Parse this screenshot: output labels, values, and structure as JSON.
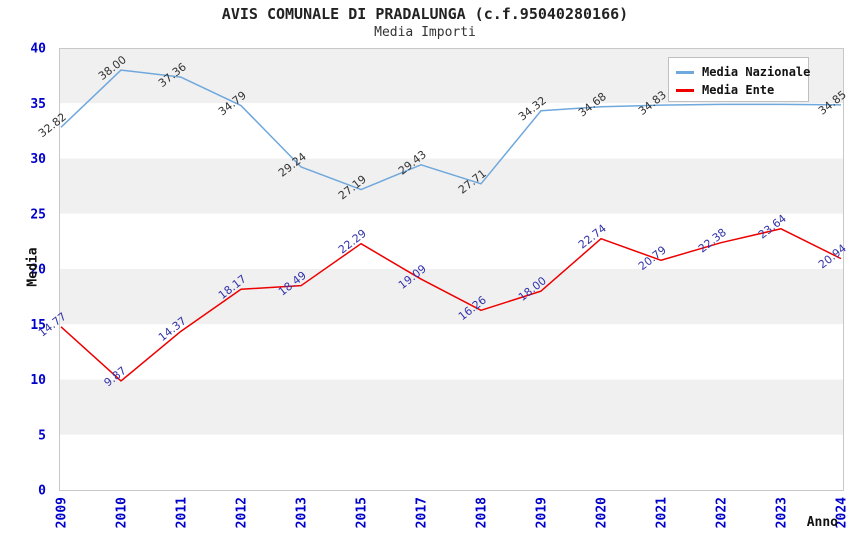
{
  "page": {
    "title": "AVIS COMUNALE DI PRADALUNGA (c.f.95040280166)",
    "subtitle": "Media Importi"
  },
  "axes": {
    "y_title": "Media",
    "x_title": "Anno"
  },
  "legend": {
    "items": [
      {
        "label": "Media Nazionale",
        "color": "#6FA8DC"
      },
      {
        "label": "Media Ente",
        "color": "#EE0000"
      }
    ]
  },
  "colors": {
    "tick_text": "#0000CC",
    "band_gray": "#F0F0F0",
    "band_white": "#FFFFFF",
    "plot_border": "#C8C8C8",
    "national_line": "#6FA8DC",
    "ente_line": "#EE0000",
    "national_label_text": "#333333",
    "ente_label_text": "#3333AA"
  },
  "chart_data": {
    "type": "line",
    "title": "AVIS COMUNALE DI PRADALUNGA (c.f.95040280166)",
    "subtitle": "Media Importi",
    "xlabel": "Anno",
    "ylabel": "Media",
    "ylim": [
      0,
      40
    ],
    "y_ticks": [
      0,
      5,
      10,
      15,
      20,
      25,
      30,
      35,
      40
    ],
    "grid": "alternating-horizontal-bands",
    "legend_position": "top-right",
    "categories": [
      "2009",
      "2010",
      "2011",
      "2012",
      "2013",
      "2015",
      "2017",
      "2018",
      "2019",
      "2020",
      "2021",
      "2022",
      "2023",
      "2024"
    ],
    "series": [
      {
        "name": "Media Nazionale",
        "color": "#6FA8DC",
        "label_color": "#333333",
        "values": [
          32.82,
          38.0,
          37.36,
          34.79,
          29.24,
          27.19,
          29.43,
          27.71,
          34.32,
          34.68,
          34.83,
          34.9,
          34.9,
          34.85
        ],
        "point_labels": [
          "32.82",
          "38.00",
          "37.36",
          "34.79",
          "29.24",
          "27.19",
          "29.43",
          "27.71",
          "34.32",
          "34.68",
          "34.83",
          "",
          "",
          "34.85"
        ]
      },
      {
        "name": "Media Ente",
        "color": "#EE0000",
        "label_color": "#3333AA",
        "values": [
          14.77,
          9.87,
          14.37,
          18.17,
          18.49,
          22.29,
          19.09,
          16.26,
          18.0,
          22.74,
          20.79,
          22.38,
          23.64,
          20.94
        ],
        "point_labels": [
          "14.77",
          "9.87",
          "14.37",
          "18.17",
          "18.49",
          "22.29",
          "19.09",
          "16.26",
          "18.00",
          "22.74",
          "20.79",
          "22.38",
          "23.64",
          "20.94"
        ]
      }
    ],
    "background_bands": {
      "colors": [
        "#F0F0F0",
        "#FFFFFF"
      ],
      "step": 5
    }
  }
}
